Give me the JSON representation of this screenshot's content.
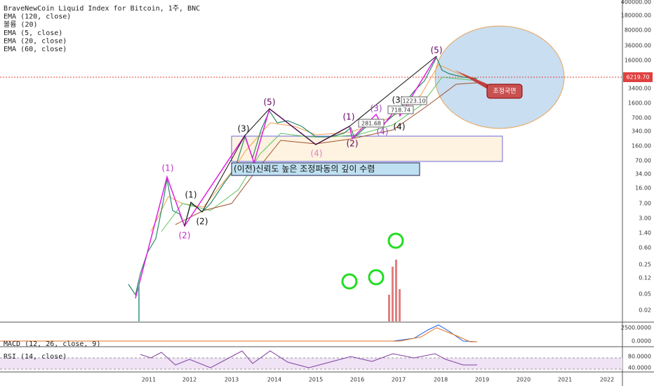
{
  "legend": [
    "BraveNewCoin Liquid Index for Bitcoin, 1주, BNC",
    "EMA (120, close)",
    "볼륨 (20)",
    "EMA (5, close)",
    "EMA (20, close)",
    "EMA (60, close)"
  ],
  "price_axis": [
    "400000.00",
    "180000.00",
    "80000.00",
    "36000.00",
    "16000.00",
    "3400.00",
    "1600.00",
    "700.00",
    "340.00",
    "160.00",
    "70.00",
    "34.00",
    "16.00",
    "7.00",
    "3.00",
    "1.40",
    "0.60",
    "0.25",
    "0.12",
    "0.05",
    "0.02"
  ],
  "last_price": "6219.70",
  "time_axis": [
    "2011",
    "2012",
    "2013",
    "2014",
    "2015",
    "2016",
    "2017",
    "2018",
    "2019",
    "2020",
    "2021",
    "2022"
  ],
  "macd": {
    "title": "MACD (12, 26, close, 9)",
    "axis": [
      "2500.0000",
      "0.0000"
    ]
  },
  "rsi": {
    "title": "RSI (14, close)",
    "axis": [
      "80.0000",
      "40.0000"
    ]
  },
  "wave_labels": [
    "(1)",
    "(2)",
    "(1)",
    "(2)",
    "(3)",
    "(5)",
    "(4)",
    "(1)",
    "(2)",
    "(3)",
    "(4)",
    "(3)",
    "(4)",
    "(5)"
  ],
  "price_tags": [
    "281.68",
    "718.74",
    "1223.10"
  ],
  "box_text": "(이전)신뢰도 높은 조정파동의 깊이 수렴",
  "callout": "조정국면"
}
